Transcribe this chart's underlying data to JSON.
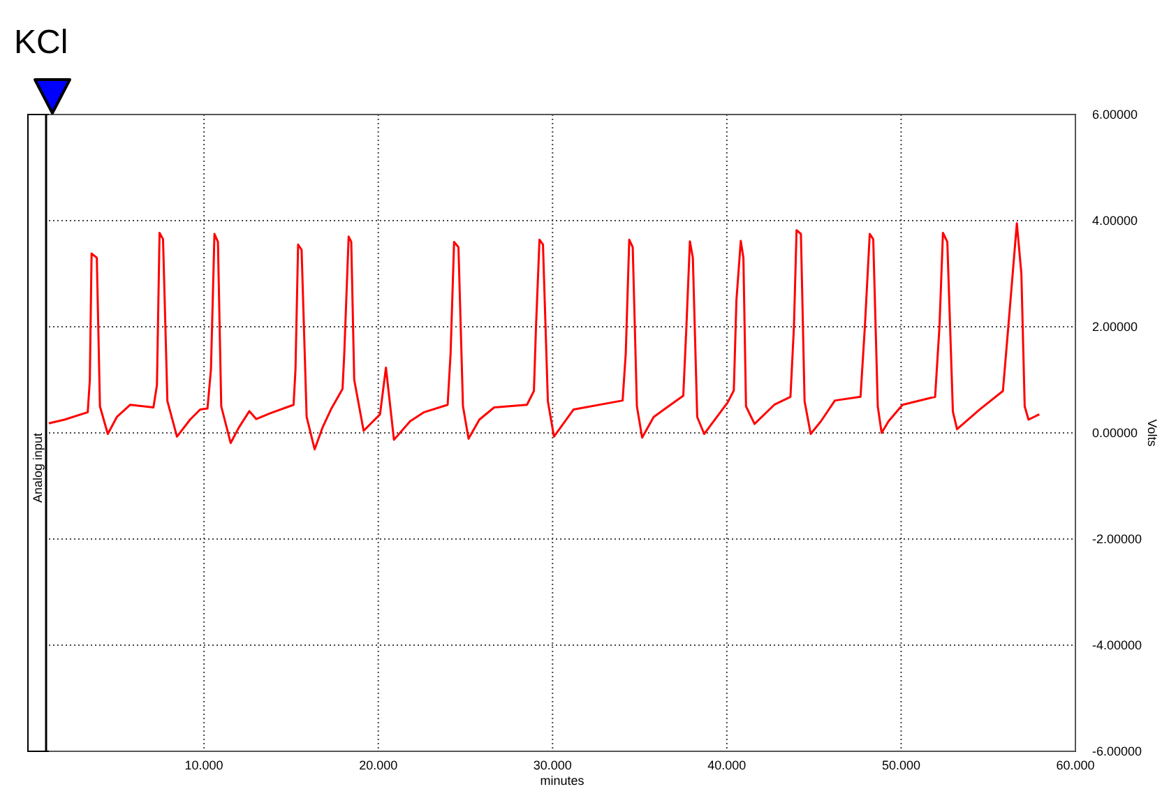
{
  "chart_data": {
    "type": "line",
    "title": "KCl",
    "xlabel": "minutes",
    "ylabel": "Volts",
    "annotations": [
      "Analog input"
    ],
    "x": [
      1.1,
      2.0,
      3.33,
      3.45,
      3.55,
      3.85,
      4.03,
      4.48,
      5.0,
      5.77,
      7.1,
      7.3,
      7.45,
      7.65,
      7.9,
      8.45,
      9.2,
      9.78,
      10.2,
      10.4,
      10.6,
      10.8,
      10.99,
      11.53,
      12.0,
      12.6,
      13.0,
      13.8,
      15.14,
      15.25,
      15.4,
      15.6,
      15.89,
      16.35,
      16.8,
      17.28,
      17.95,
      18.05,
      18.3,
      18.45,
      18.62,
      19.16,
      20.1,
      20.44,
      20.9,
      21.83,
      22.63,
      23.98,
      24.15,
      24.35,
      24.6,
      24.86,
      25.18,
      25.8,
      26.65,
      28.53,
      28.93,
      29.05,
      29.25,
      29.45,
      29.73,
      30.08,
      31.2,
      34.02,
      34.2,
      34.4,
      34.6,
      34.84,
      35.14,
      35.8,
      36.56,
      37.5,
      37.68,
      37.88,
      38.05,
      38.3,
      38.7,
      40.04,
      40.4,
      40.55,
      40.8,
      40.95,
      41.1,
      41.59,
      42.72,
      43.65,
      43.85,
      44.0,
      44.25,
      44.46,
      44.81,
      45.4,
      46.2,
      47.67,
      47.92,
      48.2,
      48.4,
      48.66,
      48.88,
      49.28,
      50.08,
      51.95,
      52.2,
      52.4,
      52.65,
      52.97,
      53.21,
      54.5,
      55.84,
      56.15,
      56.64,
      56.9,
      57.09,
      57.31,
      57.93
    ],
    "series": [
      {
        "color": "#ff0000",
        "values": [
          0.18,
          0.25,
          0.39,
          1.0,
          3.38,
          3.3,
          0.5,
          -0.02,
          0.3,
          0.53,
          0.48,
          0.9,
          3.77,
          3.65,
          0.6,
          -0.07,
          0.25,
          0.44,
          0.46,
          1.2,
          3.75,
          3.6,
          0.5,
          -0.19,
          0.1,
          0.41,
          0.26,
          0.37,
          0.53,
          1.2,
          3.55,
          3.45,
          0.3,
          -0.31,
          0.1,
          0.44,
          0.83,
          1.5,
          3.7,
          3.6,
          1.0,
          0.04,
          0.35,
          1.23,
          -0.13,
          0.22,
          0.39,
          0.53,
          1.5,
          3.6,
          3.5,
          0.5,
          -0.11,
          0.25,
          0.48,
          0.53,
          0.79,
          2.0,
          3.64,
          3.55,
          0.6,
          -0.07,
          0.44,
          0.61,
          1.5,
          3.64,
          3.5,
          0.5,
          -0.09,
          0.3,
          0.48,
          0.7,
          2.0,
          3.61,
          3.3,
          0.3,
          -0.02,
          0.57,
          0.8,
          2.5,
          3.62,
          3.3,
          0.5,
          0.17,
          0.53,
          0.68,
          2.0,
          3.82,
          3.75,
          0.6,
          -0.02,
          0.22,
          0.61,
          0.68,
          2.0,
          3.75,
          3.65,
          0.5,
          0.0,
          0.22,
          0.53,
          0.68,
          2.0,
          3.77,
          3.6,
          0.4,
          0.07,
          0.44,
          0.79,
          2.0,
          3.95,
          3.0,
          0.5,
          0.25,
          0.35
        ]
      }
    ],
    "xlim": [
      1.1,
      60
    ],
    "ylim": [
      -6,
      6
    ],
    "xticks": [
      {
        "value": 10,
        "label": "10.000"
      },
      {
        "value": 20,
        "label": "20.000"
      },
      {
        "value": 30,
        "label": "30.000"
      },
      {
        "value": 40,
        "label": "40.000"
      },
      {
        "value": 50,
        "label": "50.000"
      },
      {
        "value": 60,
        "label": "60.000"
      }
    ],
    "yticks": [
      {
        "value": -6,
        "label": "-6.00000"
      },
      {
        "value": -4,
        "label": "-4.00000"
      },
      {
        "value": -2,
        "label": "-2.00000"
      },
      {
        "value": 0,
        "label": "0.00000"
      },
      {
        "value": 2,
        "label": "2.00000"
      },
      {
        "value": 4,
        "label": "4.00000"
      },
      {
        "value": 6,
        "label": "6.00000"
      }
    ],
    "grid": true,
    "marker": "none",
    "line_style": "solid"
  }
}
